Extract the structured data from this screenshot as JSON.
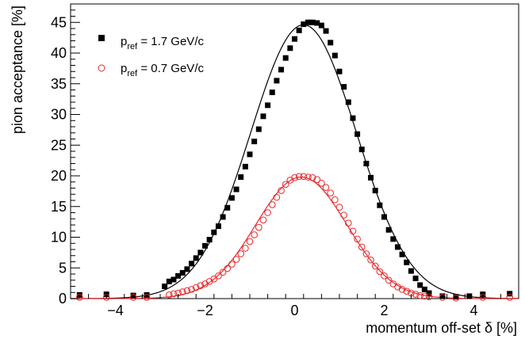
{
  "chart_data": {
    "type": "scatter",
    "title": "",
    "xlabel": "momentum off-set δ [%]",
    "ylabel": "pion acceptance [%]",
    "xlim": [
      -5,
      5
    ],
    "ylim": [
      0,
      48
    ],
    "grid": false,
    "legend_position": "top-left",
    "x_ticks": [
      -4,
      -2,
      0,
      2,
      4
    ],
    "x_tick_labels": [
      "−4",
      "−2",
      "0",
      "2",
      "4"
    ],
    "y_ticks": [
      0,
      5,
      10,
      15,
      20,
      25,
      30,
      35,
      40,
      45
    ],
    "y_tick_labels": [
      "0",
      "5",
      "10",
      "15",
      "20",
      "25",
      "30",
      "35",
      "40",
      "45"
    ],
    "series": [
      {
        "name": "p_ref = 1.7 GeV/c",
        "legend_main": "p",
        "legend_sub": "ref",
        "legend_rest": " = 1.7 GeV/c",
        "marker": "filled-square",
        "color": "#000000",
        "x": [
          -4.8,
          -4.2,
          -3.6,
          -3.3,
          -2.9,
          -2.8,
          -2.7,
          -2.6,
          -2.5,
          -2.4,
          -2.3,
          -2.2,
          -2.1,
          -2.0,
          -1.9,
          -1.8,
          -1.7,
          -1.6,
          -1.5,
          -1.4,
          -1.3,
          -1.2,
          -1.1,
          -1.0,
          -0.9,
          -0.8,
          -0.7,
          -0.6,
          -0.5,
          -0.4,
          -0.3,
          -0.2,
          -0.1,
          0.0,
          0.1,
          0.2,
          0.3,
          0.4,
          0.5,
          0.6,
          0.7,
          0.8,
          0.9,
          1.0,
          1.1,
          1.2,
          1.3,
          1.4,
          1.5,
          1.6,
          1.7,
          1.8,
          1.9,
          2.0,
          2.1,
          2.2,
          2.3,
          2.4,
          2.5,
          2.6,
          2.7,
          2.8,
          2.9,
          3.0,
          3.3,
          3.6,
          3.9,
          4.2,
          4.8
        ],
        "y": [
          0.6,
          0.7,
          0.5,
          0.6,
          2.0,
          2.8,
          3.1,
          3.7,
          4.2,
          4.8,
          5.7,
          6.6,
          7.5,
          8.6,
          9.6,
          10.8,
          11.8,
          13.3,
          14.8,
          16.4,
          17.8,
          19.8,
          21.5,
          23.5,
          25.6,
          27.6,
          29.7,
          31.5,
          33.6,
          35.5,
          37.3,
          39.2,
          40.8,
          42.3,
          43.7,
          44.7,
          45.0,
          45.0,
          44.9,
          44.5,
          43.6,
          41.7,
          39.6,
          37.0,
          34.5,
          32.0,
          29.4,
          26.8,
          24.3,
          22.0,
          19.7,
          17.6,
          15.2,
          13.3,
          11.2,
          9.7,
          8.4,
          7.2,
          5.9,
          4.5,
          3.3,
          2.2,
          1.5,
          0.9,
          0.4,
          0.3,
          0.4,
          0.7,
          0.8
        ]
      },
      {
        "name": "p_ref = 0.7 GeV/c",
        "legend_main": "p",
        "legend_sub": "ref",
        "legend_rest": " = 0.7 GeV/c",
        "marker": "open-circle",
        "color": "#e8282a",
        "x": [
          -4.8,
          -4.2,
          -3.6,
          -3.3,
          -2.8,
          -2.7,
          -2.6,
          -2.5,
          -2.4,
          -2.3,
          -2.2,
          -2.1,
          -2.0,
          -1.9,
          -1.8,
          -1.7,
          -1.6,
          -1.5,
          -1.4,
          -1.3,
          -1.2,
          -1.1,
          -1.0,
          -0.9,
          -0.8,
          -0.7,
          -0.6,
          -0.5,
          -0.4,
          -0.3,
          -0.2,
          -0.1,
          0.0,
          0.1,
          0.2,
          0.3,
          0.4,
          0.5,
          0.6,
          0.7,
          0.8,
          0.9,
          1.0,
          1.1,
          1.2,
          1.3,
          1.4,
          1.5,
          1.6,
          1.7,
          1.8,
          1.9,
          2.0,
          2.1,
          2.2,
          2.3,
          2.4,
          2.5,
          2.6,
          2.7,
          2.8,
          2.9,
          3.0,
          3.3,
          3.6,
          4.2,
          4.8
        ],
        "y": [
          0.2,
          0.2,
          0.2,
          0.2,
          0.6,
          0.8,
          0.9,
          1.1,
          1.3,
          1.5,
          1.8,
          2.1,
          2.4,
          2.8,
          3.2,
          3.7,
          4.3,
          4.9,
          5.6,
          6.4,
          7.3,
          8.2,
          9.3,
          10.4,
          11.6,
          12.8,
          14.0,
          15.3,
          16.5,
          17.6,
          18.6,
          19.3,
          19.7,
          19.9,
          19.9,
          19.8,
          19.7,
          19.4,
          18.8,
          18.1,
          17.2,
          16.1,
          14.9,
          13.6,
          12.3,
          11.0,
          9.7,
          8.4,
          7.3,
          6.3,
          5.3,
          4.4,
          3.7,
          3.0,
          2.4,
          1.9,
          1.5,
          1.2,
          0.9,
          0.7,
          0.5,
          0.4,
          0.3,
          0.2,
          0.1,
          0.2,
          0.2
        ]
      }
    ],
    "fits": [
      {
        "series": "p_ref = 1.7 GeV/c",
        "kind": "gaussian",
        "amplitude": 44.6,
        "mean": 0.2,
        "sigma": 1.18,
        "color": "#000000"
      },
      {
        "series": "p_ref = 0.7 GeV/c",
        "kind": "gaussian",
        "amplitude": 19.8,
        "mean": 0.15,
        "sigma": 1.02,
        "color": "#e8282a"
      }
    ]
  }
}
